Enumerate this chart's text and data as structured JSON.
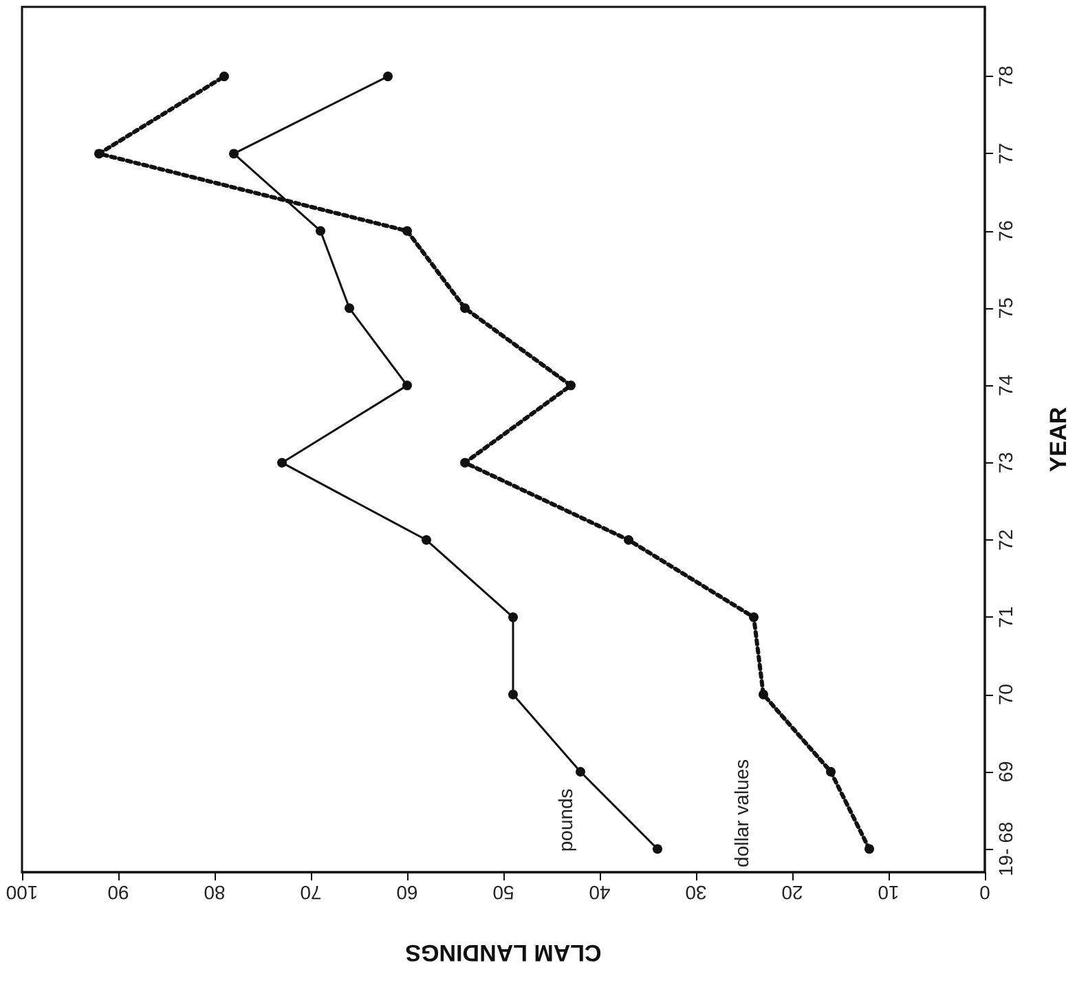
{
  "chart_data": {
    "type": "line",
    "xlabel": "CLAM LANDINGS",
    "ylabel": "YEAR",
    "series": [
      {
        "name": "pounds",
        "color": "#111111",
        "line_style": "solid",
        "x": [
          34,
          42,
          49,
          49,
          58,
          73,
          60,
          66,
          69,
          78,
          62
        ],
        "values": [
          68,
          69,
          70,
          71,
          72,
          73,
          74,
          75,
          76,
          77,
          78
        ]
      },
      {
        "name": "dollar values",
        "color": "#111111",
        "line_style": "dotted",
        "x": [
          12,
          16,
          23,
          24,
          37,
          54,
          43,
          54,
          60,
          92,
          79
        ],
        "values": [
          68,
          69,
          70,
          71,
          72,
          73,
          74,
          75,
          76,
          77,
          78
        ]
      }
    ],
    "xlim": [
      100,
      0
    ],
    "xticks": [
      100,
      90,
      80,
      70,
      60,
      50,
      40,
      30,
      20,
      10,
      0
    ],
    "ylim": [
      67.7,
      78.9
    ],
    "yticks": [
      {
        "value": 68,
        "label": "19- 68"
      },
      69,
      70,
      71,
      72,
      73,
      74,
      75,
      76,
      77,
      78
    ],
    "grid": false,
    "legend": false,
    "marker": "circle"
  }
}
